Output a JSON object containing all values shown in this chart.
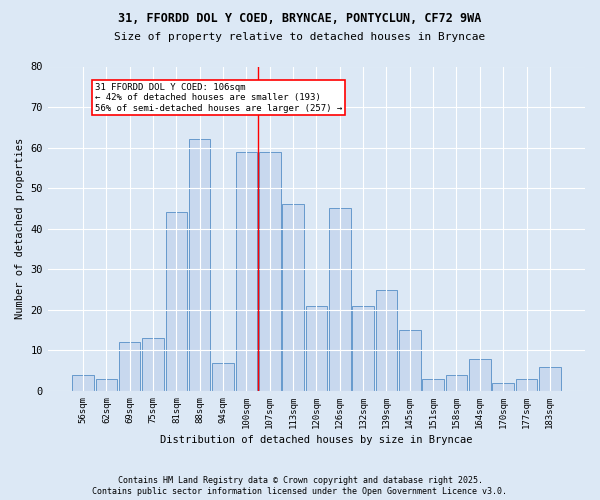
{
  "title1": "31, FFORDD DOL Y COED, BRYNCAE, PONTYCLUN, CF72 9WA",
  "title2": "Size of property relative to detached houses in Bryncae",
  "xlabel": "Distribution of detached houses by size in Bryncae",
  "ylabel": "Number of detached properties",
  "categories": [
    "56sqm",
    "62sqm",
    "69sqm",
    "75sqm",
    "81sqm",
    "88sqm",
    "94sqm",
    "100sqm",
    "107sqm",
    "113sqm",
    "120sqm",
    "126sqm",
    "132sqm",
    "139sqm",
    "145sqm",
    "151sqm",
    "158sqm",
    "164sqm",
    "170sqm",
    "177sqm",
    "183sqm"
  ],
  "values": [
    4,
    3,
    12,
    13,
    44,
    62,
    7,
    59,
    59,
    46,
    21,
    45,
    21,
    25,
    15,
    3,
    4,
    8,
    2,
    3,
    6
  ],
  "bar_color": "#c8d8ee",
  "bar_edge_color": "#6699cc",
  "vline_index": 8,
  "annotation_title": "31 FFORDD DOL Y COED: 106sqm",
  "annotation_line1": "← 42% of detached houses are smaller (193)",
  "annotation_line2": "56% of semi-detached houses are larger (257) →",
  "ylim": [
    0,
    80
  ],
  "yticks": [
    0,
    10,
    20,
    30,
    40,
    50,
    60,
    70,
    80
  ],
  "footnote1": "Contains HM Land Registry data © Crown copyright and database right 2025.",
  "footnote2": "Contains public sector information licensed under the Open Government Licence v3.0.",
  "bg_color": "#dce8f5",
  "plot_bg_color": "#dce8f5"
}
